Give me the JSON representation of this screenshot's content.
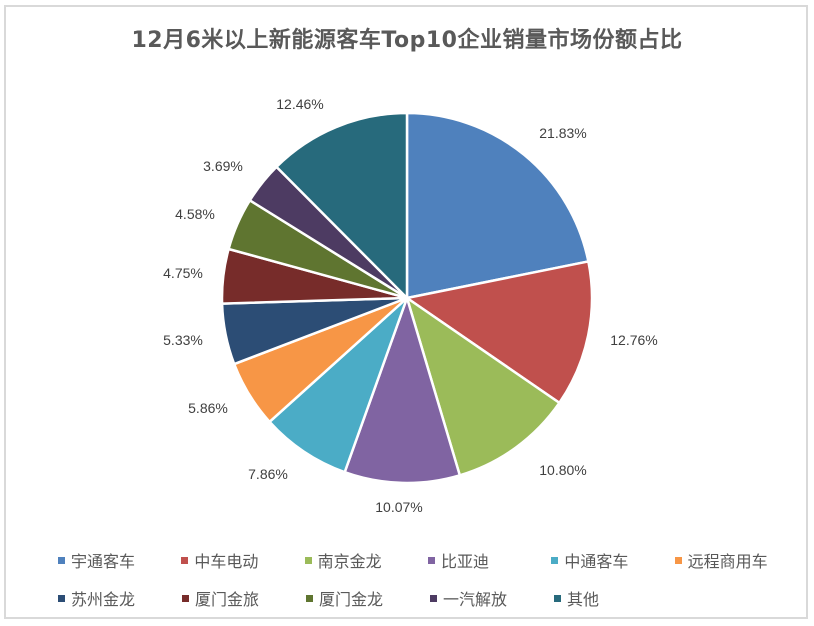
{
  "title": "12月6米以上新能源客车Top10企业销量市场份额占比",
  "chart_data": {
    "type": "pie",
    "title": "12月6米以上新能源客车Top10企业销量市场份额占比",
    "start_angle": "12 o'clock, clockwise",
    "legend_position": "bottom",
    "unit": "%",
    "categories": [
      "宇通客车",
      "中车电动",
      "南京金龙",
      "比亚迪",
      "中通客车",
      "远程商用车",
      "苏州金龙",
      "厦门金旅",
      "厦门金龙",
      "一汽解放",
      "其他"
    ],
    "values": [
      21.83,
      12.76,
      10.8,
      10.07,
      7.86,
      5.86,
      5.33,
      4.75,
      4.58,
      3.69,
      12.46
    ],
    "labels": [
      "21.83%",
      "12.76%",
      "10.80%",
      "10.07%",
      "7.86%",
      "5.86%",
      "5.33%",
      "4.75%",
      "4.58%",
      "3.69%",
      "12.46%"
    ],
    "colors": [
      "#4f81bd",
      "#c0504d",
      "#9bbb59",
      "#8064a2",
      "#4bacc6",
      "#f79646",
      "#2c4d75",
      "#772c2a",
      "#5f7530",
      "#4d3b62",
      "#276a7c"
    ]
  },
  "legend": {
    "rows": [
      [
        0,
        1,
        2,
        3,
        4,
        5
      ],
      [
        6,
        7,
        8,
        9,
        10
      ]
    ]
  }
}
